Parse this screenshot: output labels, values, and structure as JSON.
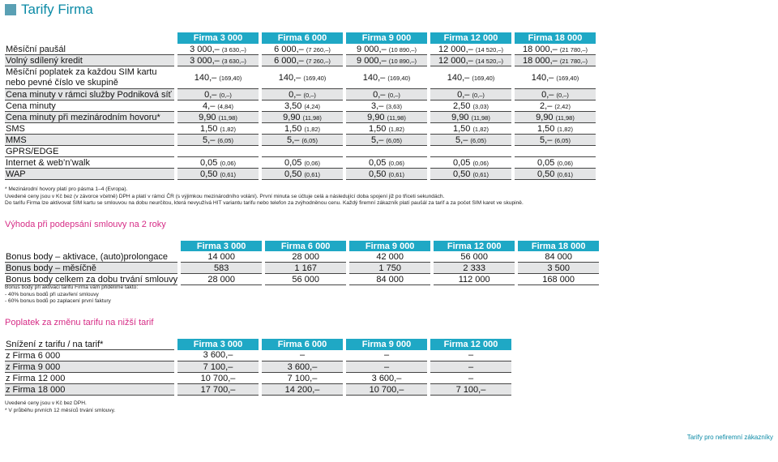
{
  "title": "Tarify Firma",
  "tariffs": [
    "Firma 3 000",
    "Firma 6 000",
    "Firma 9 000",
    "Firma 12 000",
    "Firma 18 000"
  ],
  "rows": [
    {
      "label": "Měsíční paušál",
      "gray": false,
      "cells": [
        [
          "3 000,–",
          "(3 630,–)"
        ],
        [
          "6 000,–",
          "(7 260,–)"
        ],
        [
          "9 000,–",
          "(10 890,–)"
        ],
        [
          "12 000,–",
          "(14 520,–)"
        ],
        [
          "18 000,–",
          "(21 780,–)"
        ]
      ]
    },
    {
      "label": "Volný sdílený kredit",
      "gray": true,
      "cells": [
        [
          "3 000,–",
          "(3 630,–)"
        ],
        [
          "6 000,–",
          "(7 260,–)"
        ],
        [
          "9 000,–",
          "(10 890,–)"
        ],
        [
          "12 000,–",
          "(14 520,–)"
        ],
        [
          "18 000,–",
          "(21 780,–)"
        ]
      ]
    },
    {
      "label": "Měsíční poplatek za každou SIM kartu nebo pevné číslo ve skupině",
      "gray": false,
      "tall": true,
      "cells": [
        [
          "140,–",
          "(169,40)"
        ],
        [
          "140,–",
          "(169,40)"
        ],
        [
          "140,–",
          "(169,40)"
        ],
        [
          "140,–",
          "(169,40)"
        ],
        [
          "140,–",
          "(169,40)"
        ]
      ]
    },
    {
      "label": "Cena minuty v rámci služby Podniková síť",
      "gray": true,
      "cells": [
        [
          "0,–",
          "(0,–)"
        ],
        [
          "0,–",
          "(0,–)"
        ],
        [
          "0,–",
          "(0,–)"
        ],
        [
          "0,–",
          "(0,–)"
        ],
        [
          "0,–",
          "(0,–)"
        ]
      ]
    },
    {
      "label": "Cena minuty",
      "gray": false,
      "cells": [
        [
          "4,–",
          "(4,84)"
        ],
        [
          "3,50",
          "(4,24)"
        ],
        [
          "3,–",
          "(3,63)"
        ],
        [
          "2,50",
          "(3,03)"
        ],
        [
          "2,–",
          "(2,42)"
        ]
      ]
    },
    {
      "label": "Cena minuty při mezinárodním hovoru*",
      "gray": true,
      "cells": [
        [
          "9,90",
          "(11,98)"
        ],
        [
          "9,90",
          "(11,98)"
        ],
        [
          "9,90",
          "(11,98)"
        ],
        [
          "9,90",
          "(11,98)"
        ],
        [
          "9,90",
          "(11,98)"
        ]
      ]
    },
    {
      "label": "SMS",
      "gray": false,
      "cells": [
        [
          "1,50",
          "(1,82)"
        ],
        [
          "1,50",
          "(1,82)"
        ],
        [
          "1,50",
          "(1,82)"
        ],
        [
          "1,50",
          "(1,82)"
        ],
        [
          "1,50",
          "(1,82)"
        ]
      ]
    },
    {
      "label": "MMS",
      "gray": true,
      "cells": [
        [
          "5,–",
          "(6,05)"
        ],
        [
          "5,–",
          "(6,05)"
        ],
        [
          "5,–",
          "(6,05)"
        ],
        [
          "5,–",
          "(6,05)"
        ],
        [
          "5,–",
          "(6,05)"
        ]
      ]
    },
    {
      "label": "GPRS/EDGE",
      "gray": false,
      "cells": [
        [
          "",
          ""
        ],
        [
          "",
          ""
        ],
        [
          "",
          ""
        ],
        [
          "",
          ""
        ],
        [
          "",
          ""
        ]
      ]
    },
    {
      "label": "Internet & web’n’walk",
      "gray": false,
      "cells": [
        [
          "0,05",
          "(0,06)"
        ],
        [
          "0,05",
          "(0,06)"
        ],
        [
          "0,05",
          "(0,06)"
        ],
        [
          "0,05",
          "(0,06)"
        ],
        [
          "0,05",
          "(0,06)"
        ]
      ]
    },
    {
      "label": "WAP",
      "gray": true,
      "cells": [
        [
          "0,50",
          "(0,61)"
        ],
        [
          "0,50",
          "(0,61)"
        ],
        [
          "0,50",
          "(0,61)"
        ],
        [
          "0,50",
          "(0,61)"
        ],
        [
          "0,50",
          "(0,61)"
        ]
      ]
    }
  ],
  "notes1": [
    "* Mezinárodní hovory platí pro pásma 1–4 (Evropa).",
    "Uvedené ceny jsou v Kč bez (v závorce včetně) DPH a platí v rámci ČR (s výjimkou mezinárodního volání). První minuta se účtuje celá a následující doba spojení již po třiceti sekundách.",
    "Do tarifu Firma lze aktivovat SIM kartu se smlouvou na dobu neurčitou, která nevyužívá HIT variantu tarifu nebo telefon za zvýhodněnou cenu. Každý firemní zákazník platí paušál za tarif a za počet SIM karet ve skupině."
  ],
  "section2": {
    "title": "Výhoda při podepsání smlouvy na 2 roky",
    "headers": [
      "Firma 3 000",
      "Firma 6 000",
      "Firma 9 000",
      "Firma 12 000",
      "Firma 18 000"
    ],
    "rows": [
      {
        "label": "Bonus body – aktivace, (auto)prolongace",
        "values": [
          "14 000",
          "28 000",
          "42 000",
          "56 000",
          "84 000"
        ]
      },
      {
        "label": "Bonus body – měsíčně",
        "values": [
          "583",
          "1 167",
          "1 750",
          "2 333",
          "3 500"
        ]
      },
      {
        "label": "Bonus body celkem za dobu trvání smlouvy",
        "values": [
          "28 000",
          "56 000",
          "84 000",
          "112 000",
          "168 000"
        ]
      }
    ],
    "notes": [
      "Bonus body při aktivaci tarifu Firma vám přidělíme takto:",
      "- 40% bonus bodů při uzavření smlouvy",
      "- 60% bonus bodů po zaplacení první faktury"
    ]
  },
  "section3": {
    "title": "Poplatek za změnu tarifu na nižší tarif",
    "corner": "Snížení z tarifu / na tarif*",
    "headers": [
      "Firma 3 000",
      "Firma 6 000",
      "Firma 9 000",
      "Firma 12 000"
    ],
    "rows": [
      {
        "label": "z Firma 6 000",
        "values": [
          "3 600,–",
          "–",
          "–",
          "–"
        ]
      },
      {
        "label": "z Firma 9 000",
        "values": [
          "7 100,–",
          "3 600,–",
          "–",
          "–"
        ]
      },
      {
        "label": "z Firma 12 000",
        "values": [
          "10 700,–",
          "7 100,–",
          "3 600,–",
          "–"
        ]
      },
      {
        "label": "z Firma 18 000",
        "values": [
          "17 700,–",
          "14 200,–",
          "10 700,–",
          "7 100,–"
        ]
      }
    ],
    "notes": [
      "Uvedené ceny jsou v Kč bez DPH.",
      "* V průběhu prvních 12 měsíců trvání smlouvy."
    ]
  },
  "footer": "Tarify pro nefiremní zákazníky"
}
